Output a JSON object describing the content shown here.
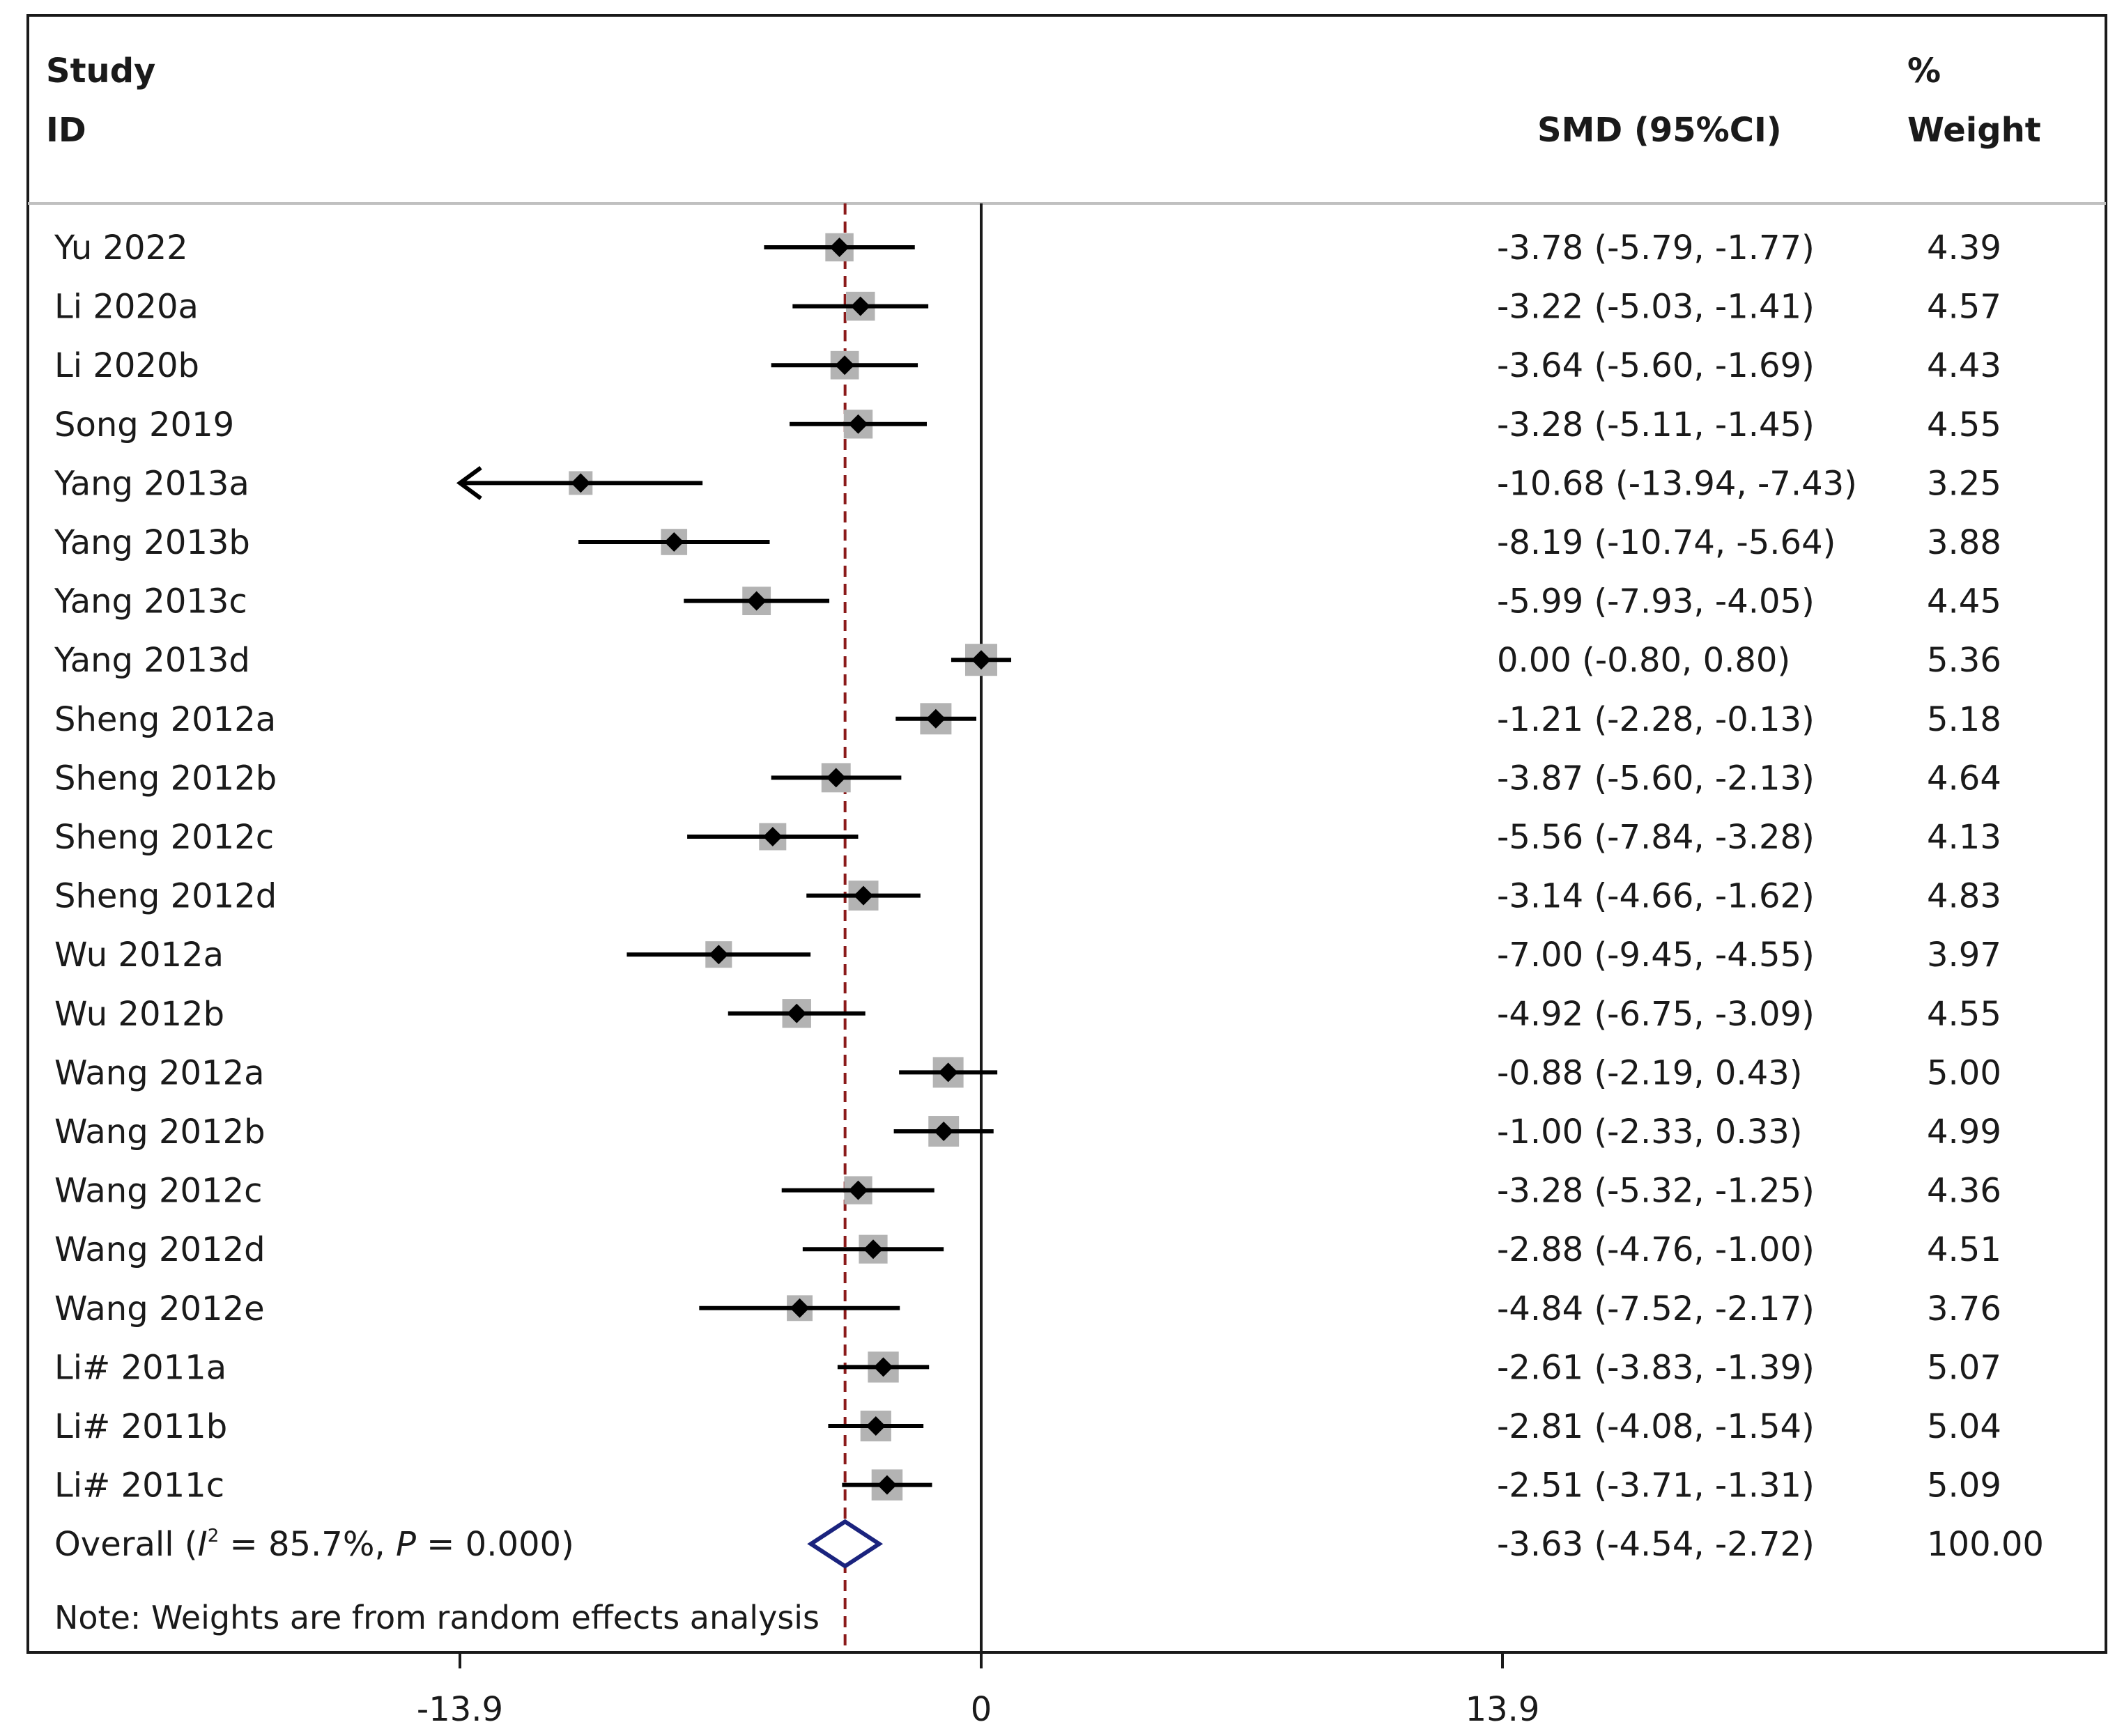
{
  "header": {
    "study": "Study",
    "id": "ID",
    "smd": "SMD (95%CI)",
    "pct": "%",
    "weight": "Weight"
  },
  "chart_data": {
    "type": "forest",
    "xlim": [
      -13.9,
      13.9
    ],
    "xticks": [
      -13.9,
      0,
      13.9
    ],
    "xtick_labels": [
      "-13.9",
      "0",
      "13.9"
    ],
    "null_line": 0,
    "colors": {
      "overall_diamond": "#1a237e",
      "overall_line": "#8b1a1a",
      "weight_box": "#b3b3b3"
    },
    "studies": [
      {
        "label": "Yu 2022",
        "smd": -3.78,
        "lo": -5.79,
        "hi": -1.77,
        "ci_text": "-3.78 (-5.79, -1.77)",
        "weight": "4.39"
      },
      {
        "label": "Li 2020a",
        "smd": -3.22,
        "lo": -5.03,
        "hi": -1.41,
        "ci_text": "-3.22 (-5.03, -1.41)",
        "weight": "4.57"
      },
      {
        "label": "Li 2020b",
        "smd": -3.64,
        "lo": -5.6,
        "hi": -1.69,
        "ci_text": "-3.64 (-5.60, -1.69)",
        "weight": "4.43"
      },
      {
        "label": "Song 2019",
        "smd": -3.28,
        "lo": -5.11,
        "hi": -1.45,
        "ci_text": "-3.28 (-5.11, -1.45)",
        "weight": "4.55"
      },
      {
        "label": "Yang 2013a",
        "smd": -10.68,
        "lo": -13.94,
        "hi": -7.43,
        "ci_text": "-10.68 (-13.94, -7.43)",
        "weight": "3.25"
      },
      {
        "label": "Yang 2013b",
        "smd": -8.19,
        "lo": -10.74,
        "hi": -5.64,
        "ci_text": "-8.19 (-10.74, -5.64)",
        "weight": "3.88"
      },
      {
        "label": "Yang 2013c",
        "smd": -5.99,
        "lo": -7.93,
        "hi": -4.05,
        "ci_text": "-5.99 (-7.93, -4.05)",
        "weight": "4.45"
      },
      {
        "label": "Yang 2013d",
        "smd": 0.0,
        "lo": -0.8,
        "hi": 0.8,
        "ci_text": "0.00 (-0.80, 0.80)",
        "weight": "5.36"
      },
      {
        "label": "Sheng 2012a",
        "smd": -1.21,
        "lo": -2.28,
        "hi": -0.13,
        "ci_text": "-1.21 (-2.28, -0.13)",
        "weight": "5.18"
      },
      {
        "label": "Sheng 2012b",
        "smd": -3.87,
        "lo": -5.6,
        "hi": -2.13,
        "ci_text": "-3.87 (-5.60, -2.13)",
        "weight": "4.64"
      },
      {
        "label": "Sheng 2012c",
        "smd": -5.56,
        "lo": -7.84,
        "hi": -3.28,
        "ci_text": "-5.56 (-7.84, -3.28)",
        "weight": "4.13"
      },
      {
        "label": "Sheng 2012d",
        "smd": -3.14,
        "lo": -4.66,
        "hi": -1.62,
        "ci_text": "-3.14 (-4.66, -1.62)",
        "weight": "4.83"
      },
      {
        "label": "Wu 2012a",
        "smd": -7.0,
        "lo": -9.45,
        "hi": -4.55,
        "ci_text": "-7.00 (-9.45, -4.55)",
        "weight": "3.97"
      },
      {
        "label": "Wu 2012b",
        "smd": -4.92,
        "lo": -6.75,
        "hi": -3.09,
        "ci_text": "-4.92 (-6.75, -3.09)",
        "weight": "4.55"
      },
      {
        "label": "Wang 2012a",
        "smd": -0.88,
        "lo": -2.19,
        "hi": 0.43,
        "ci_text": "-0.88 (-2.19, 0.43)",
        "weight": "5.00"
      },
      {
        "label": "Wang 2012b",
        "smd": -1.0,
        "lo": -2.33,
        "hi": 0.33,
        "ci_text": "-1.00 (-2.33, 0.33)",
        "weight": "4.99"
      },
      {
        "label": "Wang 2012c",
        "smd": -3.28,
        "lo": -5.32,
        "hi": -1.25,
        "ci_text": "-3.28 (-5.32, -1.25)",
        "weight": "4.36"
      },
      {
        "label": "Wang 2012d",
        "smd": -2.88,
        "lo": -4.76,
        "hi": -1.0,
        "ci_text": "-2.88 (-4.76, -1.00)",
        "weight": "4.51"
      },
      {
        "label": "Wang 2012e",
        "smd": -4.84,
        "lo": -7.52,
        "hi": -2.17,
        "ci_text": "-4.84 (-7.52, -2.17)",
        "weight": "3.76"
      },
      {
        "label": "Li# 2011a",
        "smd": -2.61,
        "lo": -3.83,
        "hi": -1.39,
        "ci_text": "-2.61 (-3.83, -1.39)",
        "weight": "5.07"
      },
      {
        "label": "Li# 2011b",
        "smd": -2.81,
        "lo": -4.08,
        "hi": -1.54,
        "ci_text": "-2.81 (-4.08, -1.54)",
        "weight": "5.04"
      },
      {
        "label": "Li# 2011c",
        "smd": -2.51,
        "lo": -3.71,
        "hi": -1.31,
        "ci_text": "-2.51 (-3.71, -1.31)",
        "weight": "5.09"
      }
    ],
    "overall": {
      "label_prefix": "Overall (",
      "label_i": "I",
      "label_sup": "2",
      "label_mid": " = 85.7%, ",
      "label_p": "P",
      "label_suffix": " = 0.000)",
      "smd": -3.63,
      "lo": -4.54,
      "hi": -2.72,
      "ci_text": "-3.63 (-4.54, -2.72)",
      "weight": "100.00"
    },
    "note": "Note: Weights are from random effects analysis"
  }
}
